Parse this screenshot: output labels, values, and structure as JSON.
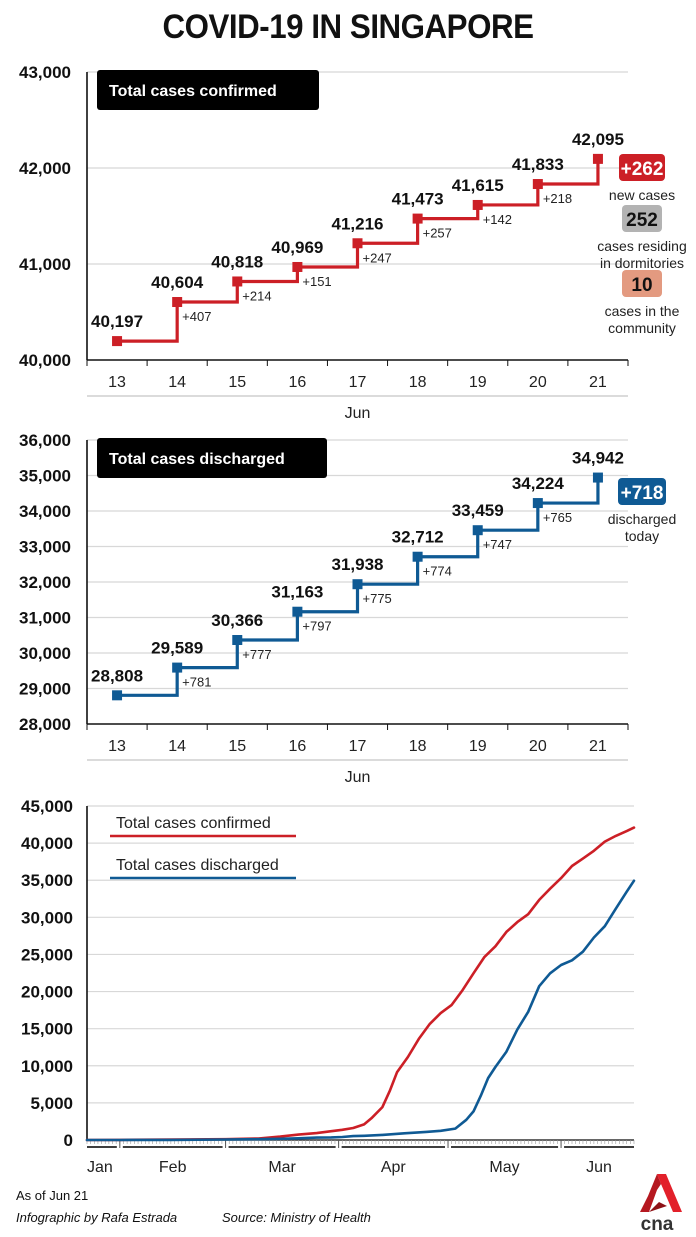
{
  "title": "COVID-19 IN SINGAPORE",
  "colors": {
    "confirmed": "#cc1f26",
    "discharged": "#0f5a94",
    "dorm_badge": "#b3b3b3",
    "community_badge": "#e39a80",
    "grid": "#d8d8d8",
    "label_box": "#000000"
  },
  "chart_data": [
    {
      "type": "line",
      "step": true,
      "title": "Total cases confirmed",
      "xlabel": "Jun",
      "ylabel": "",
      "categories": [
        "13",
        "14",
        "15",
        "16",
        "17",
        "18",
        "19",
        "20",
        "21"
      ],
      "yticks": [
        "40,000",
        "41,000",
        "42,000",
        "43,000"
      ],
      "ytick_values": [
        40000,
        41000,
        42000,
        43000
      ],
      "ylim": [
        40000,
        43000
      ],
      "grid": true,
      "series": [
        {
          "name": "Total cases confirmed",
          "values": [
            40197,
            40604,
            40818,
            40969,
            41216,
            41473,
            41615,
            41833,
            42095
          ],
          "value_labels": [
            "40,197",
            "40,604",
            "40,818",
            "40,969",
            "41,216",
            "41,473",
            "41,615",
            "41,833",
            "42,095"
          ],
          "increments": [
            "",
            "+407",
            "+214",
            "+151",
            "+247",
            "+257",
            "+142",
            "+218",
            ""
          ]
        }
      ],
      "callouts": [
        {
          "value": "+262",
          "label": "new cases",
          "color_key": "confirmed"
        },
        {
          "value": "252",
          "label": "cases residing in dormitories",
          "lines": [
            "cases residing",
            "in dormitories"
          ],
          "color_key": "dorm_badge"
        },
        {
          "value": "10",
          "label": "cases in the community",
          "lines": [
            "cases in the",
            "community"
          ],
          "color_key": "community_badge"
        }
      ]
    },
    {
      "type": "line",
      "step": true,
      "title": "Total cases discharged",
      "xlabel": "Jun",
      "ylabel": "",
      "categories": [
        "13",
        "14",
        "15",
        "16",
        "17",
        "18",
        "19",
        "20",
        "21"
      ],
      "yticks": [
        "28,000",
        "29,000",
        "30,000",
        "31,000",
        "32,000",
        "33,000",
        "34,000",
        "35,000",
        "36,000"
      ],
      "ytick_values": [
        28000,
        29000,
        30000,
        31000,
        32000,
        33000,
        34000,
        35000,
        36000
      ],
      "ylim": [
        28000,
        36000
      ],
      "grid": true,
      "series": [
        {
          "name": "Total cases discharged",
          "values": [
            28808,
            29589,
            30366,
            31163,
            31938,
            32712,
            33459,
            34224,
            34942
          ],
          "value_labels": [
            "28,808",
            "29,589",
            "30,366",
            "31,163",
            "31,938",
            "32,712",
            "33,459",
            "34,224",
            "34,942"
          ],
          "increments": [
            "",
            "+781",
            "+777",
            "+797",
            "+775",
            "+774",
            "+747",
            "+765",
            ""
          ]
        }
      ],
      "callouts": [
        {
          "value": "+718",
          "label": "discharged today",
          "lines": [
            "discharged",
            "today"
          ],
          "color_key": "discharged"
        }
      ]
    },
    {
      "type": "line",
      "title": "",
      "xlabel": "",
      "ylabel": "",
      "x_axis": "date (day of year 2020)",
      "month_labels": [
        "Jan",
        "Feb",
        "Mar",
        "Apr",
        "May",
        "Jun"
      ],
      "month_start_days": [
        23,
        32,
        61,
        92,
        122,
        153
      ],
      "xlim_days": [
        23,
        173
      ],
      "yticks": [
        "0",
        "5,000",
        "10,000",
        "15,000",
        "20,000",
        "25,000",
        "30,000",
        "35,000",
        "40,000",
        "45,000"
      ],
      "ytick_values": [
        0,
        5000,
        10000,
        15000,
        20000,
        25000,
        30000,
        35000,
        40000,
        45000
      ],
      "ylim": [
        0,
        45000
      ],
      "grid": true,
      "legend": "top-left",
      "series": [
        {
          "name": "Total cases confirmed",
          "color_key": "confirmed",
          "x_days": [
            23,
            32,
            46,
            61,
            70,
            76,
            81,
            86,
            90,
            93,
            96,
            99,
            101,
            104,
            106,
            108,
            111,
            114,
            117,
            120,
            123,
            126,
            129,
            132,
            135,
            138,
            141,
            144,
            147,
            150,
            153,
            156,
            159,
            162,
            165,
            168,
            171,
            173
          ],
          "values": [
            1,
            16,
            72,
            106,
            200,
            455,
            732,
            926,
            1189,
            1375,
            1623,
            2108,
            2918,
            4427,
            6588,
            9125,
            11178,
            13624,
            15641,
            17101,
            18205,
            20198,
            22460,
            24671,
            26098,
            28038,
            29364,
            30426,
            32343,
            33860,
            35292,
            36922,
            37910,
            38965,
            40197,
            40969,
            41615,
            42095
          ]
        },
        {
          "name": "Total cases discharged",
          "color_key": "discharged",
          "x_days": [
            23,
            32,
            46,
            61,
            70,
            76,
            81,
            86,
            90,
            93,
            96,
            99,
            104,
            110,
            116,
            120,
            124,
            127,
            129,
            131,
            133,
            135,
            138,
            141,
            144,
            147,
            150,
            153,
            156,
            159,
            162,
            165,
            168,
            171,
            173
          ],
          "values": [
            0,
            0,
            15,
            72,
            105,
            156,
            228,
            320,
            344,
            406,
            528,
            560,
            683,
            896,
            1095,
            1244,
            1542,
            2721,
            3851,
            5973,
            8342,
            9835,
            11897,
            14876,
            17276,
            20727,
            22466,
            23582,
            24209,
            25368,
            27286,
            28808,
            31163,
            33459,
            34942
          ]
        }
      ]
    }
  ],
  "footer": {
    "as_of": "As of Jun 21",
    "credit": "Infographic by Rafa Estrada",
    "source": "Source: Ministry of Health",
    "logo_text": "cna"
  }
}
